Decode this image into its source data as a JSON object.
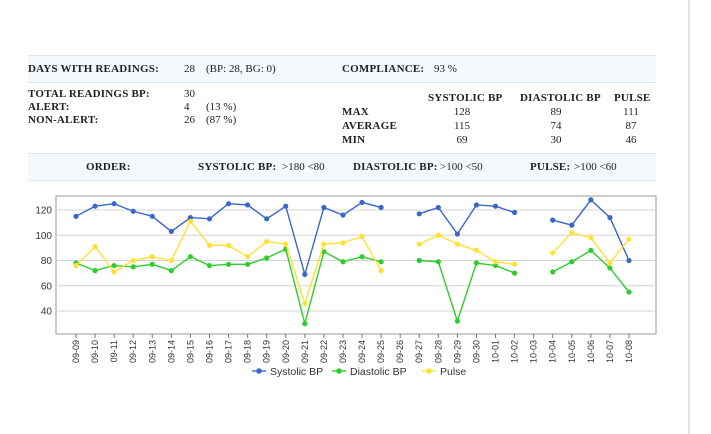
{
  "summary": {
    "days_label": "DAYS WITH READINGS:",
    "days_value": "28",
    "days_detail": "(BP: 28, BG: 0)",
    "compliance_label": "COMPLIANCE:",
    "compliance_value": "93 %",
    "total_label": "TOTAL READINGS BP:",
    "total_value": "30",
    "alert_label": "ALERT:",
    "alert_value": "4",
    "alert_pct": "(13 %)",
    "nonalert_label": "NON-ALERT:",
    "nonalert_value": "26",
    "nonalert_pct": "(87 %)"
  },
  "stats": {
    "headers": [
      "SYSTOLIC BP",
      "DIASTOLIC BP",
      "PULSE"
    ],
    "rows": [
      {
        "label": "MAX",
        "values": [
          "128",
          "89",
          "111"
        ]
      },
      {
        "label": "AVERAGE",
        "values": [
          "115",
          "74",
          "87"
        ]
      },
      {
        "label": "MIN",
        "values": [
          "69",
          "30",
          "46"
        ]
      }
    ]
  },
  "order": {
    "label": "ORDER:",
    "systolic_label": "SYSTOLIC BP:",
    "systolic_value": ">180 <80",
    "diastolic_label": "DIASTOLIC BP:",
    "diastolic_value": ">100 <50",
    "pulse_label": "PULSE:",
    "pulse_value": ">100 <60"
  },
  "chart_data": {
    "type": "line",
    "categories": [
      "09-09",
      "09-10",
      "09-11",
      "09-12",
      "09-13",
      "09-14",
      "09-15",
      "09-16",
      "09-17",
      "09-18",
      "09-19",
      "09-20",
      "09-21",
      "09-22",
      "09-23",
      "09-24",
      "09-25",
      "09-26",
      "09-27",
      "09-28",
      "09-29",
      "09-30",
      "10-01",
      "10-02",
      "10-03",
      "10-04",
      "10-05",
      "10-06",
      "10-07",
      "10-08"
    ],
    "ylim": [
      30,
      135
    ],
    "yticks": [
      40,
      60,
      80,
      100,
      120
    ],
    "grid": true,
    "legend": "bottom",
    "series": [
      {
        "name": "Systolic BP",
        "color": "#3a66cc",
        "values": [
          115,
          123,
          125,
          119,
          115,
          103,
          114,
          113,
          125,
          124,
          113,
          123,
          69,
          122,
          116,
          126,
          122,
          null,
          117,
          122,
          101,
          124,
          123,
          118,
          null,
          112,
          108,
          128,
          114,
          80
        ]
      },
      {
        "name": "Diastolic BP",
        "color": "#2ecc2e",
        "values": [
          78,
          72,
          76,
          75,
          77,
          72,
          83,
          76,
          77,
          77,
          82,
          89,
          30,
          87,
          79,
          83,
          79,
          null,
          80,
          79,
          32,
          78,
          76,
          70,
          null,
          71,
          79,
          88,
          74,
          55
        ]
      },
      {
        "name": "Pulse",
        "color": "#ffe135",
        "values": [
          76,
          91,
          71,
          80,
          83,
          80,
          111,
          92,
          92,
          83,
          95,
          93,
          46,
          93,
          94,
          99,
          72,
          null,
          93,
          100,
          93,
          88,
          79,
          77,
          null,
          86,
          102,
          98,
          78,
          97
        ]
      }
    ]
  }
}
